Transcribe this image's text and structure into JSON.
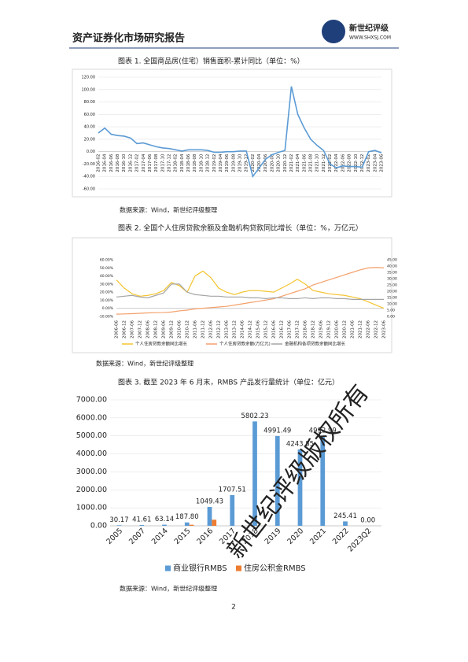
{
  "header": {
    "title": "资产证券化市场研究报告",
    "logo_name": "新世纪评级",
    "logo_url": "WWW.SHXSJ.COM"
  },
  "figures": [
    {
      "caption": "图表 1.  全国商品房(住宅）销售面积-累计同比（单位：%）",
      "source": "数据来源：Wind，新世纪评级整理"
    },
    {
      "caption": "图表 2.  全国个人住房贷款余额及金融机构贷款同比增长（单位：%，万亿元）",
      "source": "数据来源：Wind，新世纪评级整理"
    },
    {
      "caption": "图表 3.  截至 2023 年 6 月末，RMBS 产品发行量统计（单位：亿元）",
      "source": "数据来源：Wind，新世纪评级整理"
    }
  ],
  "watermark": "新世纪评级版权所有",
  "page_number": "2",
  "chart_data": [
    {
      "type": "line",
      "grid": true,
      "categories": [
        "2016-02",
        "2016-04",
        "2016-06",
        "2016-08",
        "2016-10",
        "2016-12",
        "2017-02",
        "2017-04",
        "2017-06",
        "2017-08",
        "2017-10",
        "2017-12",
        "2018-02",
        "2018-04",
        "2018-06",
        "2018-08",
        "2018-10",
        "2018-12",
        "2019-02",
        "2019-04",
        "2019-06",
        "2019-08",
        "2019-10",
        "2019-12",
        "2020-02",
        "2020-04",
        "2020-06",
        "2020-08",
        "2020-10",
        "2020-12",
        "2021-02",
        "2021-04",
        "2021-06",
        "2021-08",
        "2021-10",
        "2021-12",
        "2022-02",
        "2022-04",
        "2022-06",
        "2022-08",
        "2022-10",
        "2022-12",
        "2023-02",
        "2023-04",
        "2023-06"
      ],
      "series": [
        {
          "color": "#5b9bd5",
          "values": [
            30,
            38,
            28,
            26,
            25,
            22,
            13,
            14,
            11,
            8,
            6,
            5,
            3,
            1,
            3,
            3,
            3,
            2,
            -1,
            -1,
            0,
            0,
            1,
            1,
            -40,
            -26,
            -12,
            -5,
            -1,
            2,
            105,
            60,
            38,
            20,
            10,
            2,
            -20,
            -26,
            -23,
            -24,
            -24,
            -25,
            0,
            2,
            -2
          ]
        }
      ],
      "ylim": [
        -60,
        120
      ],
      "yticks": [
        {
          "value": 120,
          "label": "120.00"
        },
        {
          "value": 100,
          "label": "100.00"
        },
        {
          "value": 80,
          "label": "80.00"
        },
        {
          "value": 60,
          "label": "60.00"
        },
        {
          "value": 40,
          "label": "40.00"
        },
        {
          "value": 20,
          "label": "20.00"
        },
        {
          "value": 0,
          "label": "0.00"
        },
        {
          "value": -20,
          "label": "-20.00"
        },
        {
          "value": -40,
          "label": "-40.00"
        },
        {
          "value": -60,
          "label": "-60.00"
        }
      ]
    },
    {
      "type": "line",
      "grid": false,
      "categories": [
        "2006-06",
        "2006-12",
        "2007-06",
        "2007-12",
        "2008-06",
        "2008-12",
        "2009-06",
        "2009-12",
        "2010-06",
        "2010-12",
        "2011-06",
        "2011-12",
        "2012-06",
        "2012-12",
        "2013-06",
        "2013-12",
        "2014-06",
        "2014-12",
        "2015-06",
        "2015-12",
        "2016-06",
        "2016-12",
        "2017-06",
        "2017-12",
        "2018-06",
        "2018-12",
        "2019-06",
        "2019-12",
        "2020-06",
        "2020-12",
        "2021-06",
        "2021-12",
        "2022-06",
        "2022-12",
        "2023-06"
      ],
      "series": [
        {
          "name": "个人住房贷款余额同比增长",
          "color": "#f4c430",
          "values": [
            35,
            25,
            18,
            15,
            16,
            18,
            22,
            32,
            28,
            20,
            40,
            46,
            38,
            25,
            20,
            17,
            20,
            22,
            22,
            21,
            20,
            25,
            30,
            36,
            30,
            22,
            20,
            18,
            17,
            16,
            14,
            12,
            8,
            4,
            0
          ]
        },
        {
          "name": "个人住房贷款余额(万亿元)",
          "color": "#f4a06a",
          "axis": "y2",
          "values": [
            1.8,
            2,
            2.2,
            2.5,
            2.8,
            3,
            3.1,
            3.5,
            4.4,
            5,
            6,
            6.5,
            7,
            7.5,
            8,
            9,
            10,
            11,
            12,
            13,
            14,
            16,
            18,
            20,
            22,
            25,
            27,
            29,
            31,
            33,
            35,
            37,
            38.5,
            38.9,
            38.6
          ]
        },
        {
          "name": "金融机构各项贷款余额同比增长",
          "color": "#a5a5a5",
          "values": [
            14,
            15,
            16,
            14,
            13,
            16,
            19,
            30,
            30,
            20,
            17,
            16,
            15,
            15,
            14,
            14,
            14,
            13,
            13,
            12,
            13,
            13,
            12,
            12,
            13,
            12,
            13,
            13,
            12,
            12,
            11,
            11,
            11,
            11,
            11
          ]
        }
      ],
      "ylim": [
        -10,
        60
      ],
      "yticks": [
        {
          "value": 60,
          "label": "60.00%"
        },
        {
          "value": 50,
          "label": "50.00%"
        },
        {
          "value": 40,
          "label": "40.00%"
        },
        {
          "value": 30,
          "label": "30.00%"
        },
        {
          "value": 20,
          "label": "20.00%"
        },
        {
          "value": 10,
          "label": "10.00%"
        },
        {
          "value": 0,
          "label": "0.00%"
        },
        {
          "value": -10,
          "label": "-10.00%"
        }
      ],
      "y2lim": [
        0,
        45
      ],
      "y2ticks": [
        {
          "value": 45,
          "label": "45.00"
        },
        {
          "value": 40,
          "label": "40.00"
        },
        {
          "value": 35,
          "label": "35.00"
        },
        {
          "value": 30,
          "label": "30.00"
        },
        {
          "value": 25,
          "label": "25.00"
        },
        {
          "value": 20,
          "label": "20.00"
        },
        {
          "value": 15,
          "label": "15.00"
        },
        {
          "value": 10,
          "label": "10.00"
        },
        {
          "value": 5,
          "label": "5.00"
        },
        {
          "value": 0,
          "label": "0.00"
        }
      ]
    },
    {
      "type": "bar",
      "grid": true,
      "categories": [
        "2005",
        "2007",
        "2014",
        "2015",
        "2016",
        "2017",
        "2018",
        "2019",
        "2020",
        "2021",
        "2022",
        "2023Q2"
      ],
      "series": [
        {
          "name": "商业银行RMBS",
          "color": "#5b9bd5",
          "values": [
            30.17,
            41.61,
            63.14,
            187.8,
            1049.43,
            1707.51,
            5802.23,
            4991.49,
            4243.85,
            4992.99,
            245.41,
            0
          ],
          "value_labels": [
            "30.17",
            "41.61",
            "63.14",
            "187.80",
            "1049.43",
            "1707.51",
            "5802.23",
            "4991.49",
            "4243.85",
            "4992.99",
            "245.41",
            "0.00"
          ]
        },
        {
          "name": "住房公积金RMBS",
          "color": "#ed7d31",
          "values": [
            null,
            null,
            null,
            60,
            340,
            null,
            null,
            null,
            null,
            null,
            null,
            null
          ]
        }
      ],
      "ylim": [
        0,
        7000
      ],
      "yticks": [
        {
          "value": 0,
          "label": "0.00"
        },
        {
          "value": 1000,
          "label": "1000.00"
        },
        {
          "value": 2000,
          "label": "2000.00"
        },
        {
          "value": 3000,
          "label": "3000.00"
        },
        {
          "value": 4000,
          "label": "4000.00"
        },
        {
          "value": 5000,
          "label": "5000.00"
        },
        {
          "value": 6000,
          "label": "6000.00"
        },
        {
          "value": 7000,
          "label": "7000.00"
        }
      ]
    }
  ]
}
